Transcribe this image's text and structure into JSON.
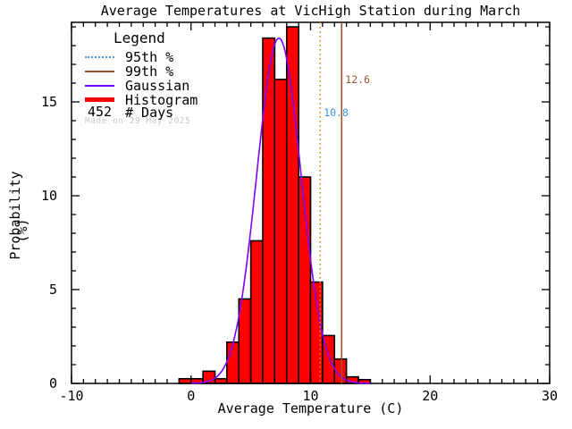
{
  "title": "Average Temperatures at VicHigh Station during March",
  "axes": {
    "xlabel": "Average Temperature (C)",
    "ylabel": "Probability",
    "ylabel_units": "(%)",
    "x_ticks": [
      -10,
      0,
      10,
      20,
      30
    ],
    "y_ticks": [
      0,
      5,
      10,
      15
    ],
    "xlim": [
      -10,
      30
    ],
    "ylim": [
      0,
      19.24
    ]
  },
  "legend": {
    "title": "Legend",
    "items": [
      {
        "name": "p95",
        "label": "95th %",
        "color": "#4D9BE6",
        "style": "dotted"
      },
      {
        "name": "p99",
        "label": "99th %",
        "color": "#A0522D",
        "style": "solid"
      },
      {
        "name": "gaussian",
        "label": "Gaussian",
        "color": "#7F00FF",
        "style": "solid"
      },
      {
        "name": "histogram",
        "label": "Histogram",
        "color": "#FF0000",
        "style": "thick"
      }
    ],
    "days_value": "452",
    "days_label": "# Days",
    "stamp": "Made on 29 May 2025",
    "stamp_color": "#C8C8C8"
  },
  "annotations": {
    "p95": {
      "value": 10.8,
      "label": "10.8",
      "line_color": "#D2881E",
      "label_color": "#3D94E1",
      "line_style": "dotted"
    },
    "p99": {
      "value": 12.6,
      "label": "12.6",
      "line_color": "#A0522D",
      "label_color": "#A0522D",
      "line_style": "solid"
    }
  },
  "chart_data": {
    "type": "bar",
    "subtype": "histogram-with-gaussian-fit",
    "title": "Average Temperatures at VicHigh Station during March",
    "xlabel": "Average Temperature (C)",
    "ylabel": "Probability (%)",
    "xlim": [
      -10,
      30
    ],
    "ylim": [
      0,
      19.24
    ],
    "n_days": 452,
    "bin_start": -1,
    "bin_width": 1,
    "bin_edges": [
      -1,
      0,
      1,
      2,
      3,
      4,
      5,
      6,
      7,
      8,
      9,
      10,
      11,
      12,
      13,
      14,
      15
    ],
    "values": [
      0.25,
      0.25,
      0.65,
      0.25,
      2.2,
      4.5,
      7.6,
      18.4,
      16.2,
      19.0,
      11.0,
      5.4,
      2.55,
      1.3,
      0.35,
      0.2
    ],
    "bar_color": "#FF0000",
    "bar_edge_color": "#000000",
    "gaussian": {
      "mean": 7.35,
      "sigma": 1.85,
      "amplitude": 18.4,
      "color": "#7F00FF"
    },
    "percentile_lines": {
      "p95": 10.8,
      "p99": 12.6
    },
    "grid": false,
    "legend_position": "upper-left"
  }
}
